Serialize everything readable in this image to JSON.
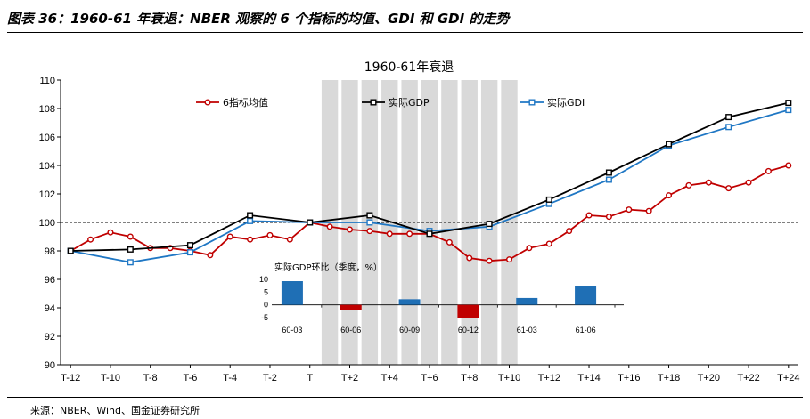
{
  "header": {
    "title": "图表 36：1960-61 年衰退：NBER 观察的 6 个指标的均值、GDI 和 GDI 的走势"
  },
  "footer": {
    "source": "来源：NBER、Wind、国金证券研究所"
  },
  "colors": {
    "six_indicator": "#C00000",
    "gdp": "#000000",
    "gdi": "#1F77C4",
    "recession_shade": "#D9D9D9",
    "inset_positive": "#1F6FB5",
    "inset_negative": "#C00000"
  },
  "chart_data": [
    {
      "type": "line",
      "title": "1960-61年衰退",
      "xlabel": "",
      "ylabel": "",
      "ylim": [
        90,
        110
      ],
      "yticks": [
        90,
        92,
        94,
        96,
        98,
        100,
        102,
        104,
        106,
        108,
        110
      ],
      "x_tick_labels": [
        "T-12",
        "T-10",
        "T-8",
        "T-6",
        "T-4",
        "T-2",
        "T",
        "T+2",
        "T+4",
        "T+6",
        "T+8",
        "T+10",
        "T+12",
        "T+14",
        "T+16",
        "T+18",
        "T+20",
        "T+22",
        "T+24"
      ],
      "x_tick_values": [
        -12,
        -10,
        -8,
        -6,
        -4,
        -2,
        0,
        2,
        4,
        6,
        8,
        10,
        12,
        14,
        16,
        18,
        20,
        22,
        24
      ],
      "xlim": [
        -12.5,
        24.5
      ],
      "reference_line": 100,
      "recession_shading": [
        [
          0.5,
          1.5
        ],
        [
          1.5,
          2.5
        ],
        [
          2.5,
          3.5
        ],
        [
          3.5,
          4.5
        ],
        [
          4.5,
          5.5
        ],
        [
          5.5,
          6.5
        ],
        [
          6.5,
          7.5
        ],
        [
          7.5,
          8.5
        ],
        [
          8.5,
          9.5
        ],
        [
          9.5,
          10.5
        ]
      ],
      "legend_position": "top",
      "series": [
        {
          "name": "6指标均值",
          "marker": "circle",
          "x": [
            -12,
            -11,
            -10,
            -9,
            -8,
            -7,
            -6,
            -5,
            -4,
            -3,
            -2,
            -1,
            0,
            1,
            2,
            3,
            4,
            5,
            6,
            7,
            8,
            9,
            10,
            11,
            12,
            13,
            14,
            15,
            16,
            17,
            18,
            19,
            20,
            21,
            22,
            23,
            24
          ],
          "values": [
            98.0,
            98.8,
            99.3,
            99.0,
            98.2,
            98.2,
            98.0,
            97.7,
            99.0,
            98.8,
            99.1,
            98.8,
            100.0,
            99.7,
            99.5,
            99.4,
            99.2,
            99.2,
            99.2,
            98.6,
            97.5,
            97.3,
            97.4,
            98.2,
            98.5,
            99.4,
            100.5,
            100.4,
            100.9,
            100.8,
            101.9,
            102.6,
            102.8,
            102.4,
            102.8,
            103.6,
            104.0
          ]
        },
        {
          "name": "实际GDP",
          "marker": "square",
          "x": [
            -12,
            -9,
            -6,
            -3,
            0,
            3,
            6,
            9,
            12,
            15,
            18,
            21,
            24
          ],
          "values": [
            98.0,
            98.1,
            98.4,
            100.5,
            100.0,
            100.5,
            99.2,
            99.9,
            101.6,
            103.5,
            105.5,
            107.4,
            108.4
          ]
        },
        {
          "name": "实际GDI",
          "marker": "square",
          "x": [
            -12,
            -9,
            -6,
            -3,
            0,
            3,
            6,
            9,
            12,
            15,
            18,
            21,
            24
          ],
          "values": [
            98.0,
            97.2,
            97.9,
            100.1,
            100.0,
            100.0,
            99.4,
            99.7,
            101.3,
            103.0,
            105.4,
            106.7,
            107.9
          ]
        }
      ]
    },
    {
      "type": "bar",
      "title": "实际GDP环比（季度，%）",
      "categories": [
        "60-03",
        "60-06",
        "60-09",
        "60-12",
        "61-03",
        "61-06"
      ],
      "values": [
        9.3,
        -2.0,
        2.2,
        -5.0,
        2.7,
        7.5
      ],
      "ylim": [
        -5,
        10
      ],
      "yticks": [
        -5,
        0,
        5,
        10
      ]
    }
  ]
}
